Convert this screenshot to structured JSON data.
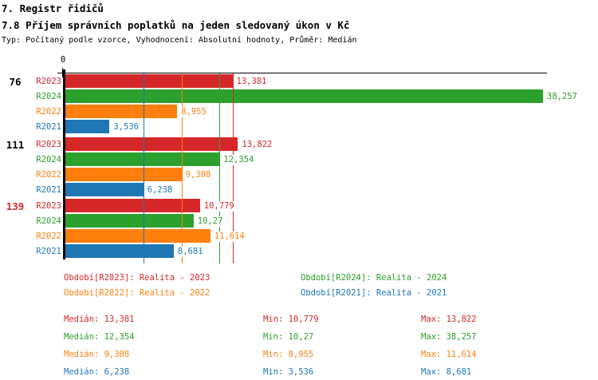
{
  "header": {
    "title": "7. Registr řidičů",
    "subtitle": "7.8 Příjem správních poplatků na jeden sledovaný úkon v Kč",
    "meta": "Typ: Počítaný podle vzorce, Vyhodnocení: Absolutní hodnoty, Průměr: Medián"
  },
  "chart_data": {
    "type": "bar",
    "orientation": "horizontal",
    "unit": "Kč",
    "x_axis": {
      "zero_label": "0",
      "min": 0,
      "max": 38.257,
      "grid": "median-lines-only"
    },
    "series": [
      {
        "id": "R2023",
        "label": "R2023",
        "name": "Realita - 2023",
        "color": "#d62728"
      },
      {
        "id": "R2024",
        "label": "R2024",
        "name": "Realita - 2024",
        "color": "#2ca02c"
      },
      {
        "id": "R2022",
        "label": "R2022",
        "name": "Realita - 2022",
        "color": "#ff7f0e"
      },
      {
        "id": "R2021",
        "label": "R2021",
        "name": "Realita - 2021",
        "color": "#1f77b4"
      }
    ],
    "groups": [
      {
        "label": "76",
        "label_color": "#000000",
        "values": [
          {
            "series": "R2023",
            "value": 13.381,
            "display": "13,381"
          },
          {
            "series": "R2024",
            "value": 38.257,
            "display": "38,257"
          },
          {
            "series": "R2022",
            "value": 8.955,
            "display": "8,955"
          },
          {
            "series": "R2021",
            "value": 3.536,
            "display": "3,536"
          }
        ]
      },
      {
        "label": "111",
        "label_color": "#000000",
        "values": [
          {
            "series": "R2023",
            "value": 13.822,
            "display": "13,822"
          },
          {
            "series": "R2024",
            "value": 12.354,
            "display": "12,354"
          },
          {
            "series": "R2022",
            "value": 9.308,
            "display": "9,308"
          },
          {
            "series": "R2021",
            "value": 6.238,
            "display": "6,238"
          }
        ]
      },
      {
        "label": "139",
        "label_color": "#d62728",
        "values": [
          {
            "series": "R2023",
            "value": 10.779,
            "display": "10,779"
          },
          {
            "series": "R2024",
            "value": 10.27,
            "display": "10,27"
          },
          {
            "series": "R2022",
            "value": 11.614,
            "display": "11,614"
          },
          {
            "series": "R2021",
            "value": 8.681,
            "display": "8,681"
          }
        ]
      }
    ],
    "median_lines": [
      {
        "series": "R2023",
        "value": 13.381
      },
      {
        "series": "R2024",
        "value": 12.354
      },
      {
        "series": "R2022",
        "value": 9.308
      },
      {
        "series": "R2021",
        "value": 6.238
      }
    ]
  },
  "legend": {
    "items": [
      {
        "text": "Období[R2023]: Realita - 2023",
        "color": "#d62728",
        "col": 0,
        "row": 0
      },
      {
        "text": "Období[R2024]: Realita - 2024",
        "color": "#2ca02c",
        "col": 1,
        "row": 0
      },
      {
        "text": "Období[R2022]: Realita - 2022",
        "color": "#ff7f0e",
        "col": 0,
        "row": 1
      },
      {
        "text": "Období[R2021]: Realita - 2021",
        "color": "#1f77b4",
        "col": 1,
        "row": 1
      }
    ]
  },
  "stats": {
    "rows": [
      {
        "color": "#d62728",
        "median": "Medián: 13,381",
        "min": "Min: 10,779",
        "max": "Max: 13,822"
      },
      {
        "color": "#2ca02c",
        "median": "Medián: 12,354",
        "min": "Min: 10,27",
        "max": "Max: 38,257"
      },
      {
        "color": "#ff7f0e",
        "median": "Medián: 9,308",
        "min": "Min: 8,955",
        "max": "Max: 11,614"
      },
      {
        "color": "#1f77b4",
        "median": "Medián: 6,238",
        "min": "Min: 3,536",
        "max": "Max: 8,681"
      }
    ]
  }
}
